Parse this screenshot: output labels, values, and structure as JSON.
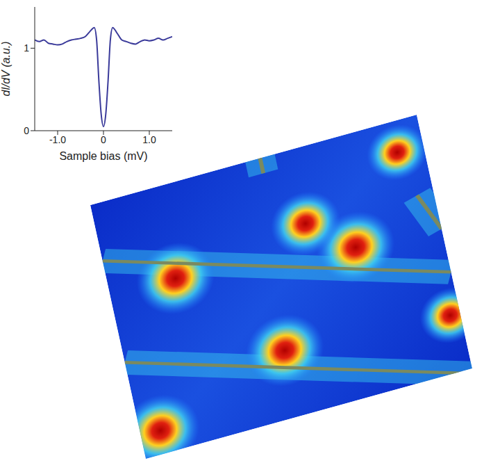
{
  "chart_data": {
    "type": "line",
    "xlabel": "Sample bias (mV)",
    "ylabel": "dI/dV (a.u.)",
    "x": [
      -1.5,
      -1.4,
      -1.3,
      -1.2,
      -1.1,
      -1.0,
      -0.9,
      -0.8,
      -0.7,
      -0.6,
      -0.5,
      -0.4,
      -0.3,
      -0.2,
      -0.15,
      -0.1,
      -0.05,
      0,
      0.05,
      0.1,
      0.15,
      0.2,
      0.3,
      0.4,
      0.5,
      0.6,
      0.7,
      0.8,
      0.9,
      1.0,
      1.1,
      1.2,
      1.3,
      1.4,
      1.5
    ],
    "values": [
      1.1,
      1.08,
      1.1,
      1.06,
      1.05,
      1.04,
      1.05,
      1.08,
      1.1,
      1.11,
      1.12,
      1.14,
      1.2,
      1.25,
      1.1,
      0.6,
      0.2,
      0.05,
      0.2,
      0.6,
      1.1,
      1.25,
      1.18,
      1.1,
      1.08,
      1.06,
      1.05,
      1.08,
      1.1,
      1.09,
      1.1,
      1.12,
      1.1,
      1.12,
      1.14
    ],
    "color": "#3a3a9a",
    "xlim": [
      -1.5,
      1.5
    ],
    "xticks": [
      {
        "value": -1,
        "label": "-1.0"
      },
      0,
      {
        "value": 1,
        "label": "1.0"
      }
    ],
    "ylim": [
      0,
      1.5
    ],
    "yticks": [
      0,
      1
    ],
    "grid": false
  }
}
